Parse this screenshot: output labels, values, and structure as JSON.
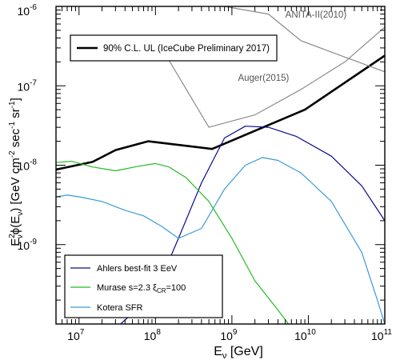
{
  "chart_data": {
    "type": "line",
    "title": "",
    "xlabel": {
      "main": "E",
      "sub": "ν",
      "rest": " [GeV]"
    },
    "ylabel": {
      "pre": "E",
      "sup": "2",
      "sub": "ν",
      "mid": "ϕ(E",
      "sub2": "ν",
      "post": ") [GeV cm",
      "sup2": "-2",
      "post2": " sec",
      "sup3": "-1",
      "post3": " sr",
      "sup4": "-1",
      "end": "]"
    },
    "xscale": "log",
    "yscale": "log",
    "xlim": [
      5000000.0,
      100000000000.0
    ],
    "ylim": [
      1e-10,
      1e-06
    ],
    "x_ticks": [
      {
        "value": 10000000.0,
        "base": "10",
        "exp": "7"
      },
      {
        "value": 100000000.0,
        "base": "10",
        "exp": "8"
      },
      {
        "value": 1000000000.0,
        "base": "10",
        "exp": "9"
      },
      {
        "value": 10000000000.0,
        "base": "10",
        "exp": "10"
      },
      {
        "value": 100000000000.0,
        "base": "10",
        "exp": "11"
      }
    ],
    "y_ticks": [
      {
        "value": 1e-09,
        "base": "10",
        "exp": "-9"
      },
      {
        "value": 1e-08,
        "base": "10",
        "exp": "-8"
      },
      {
        "value": 1e-07,
        "base": "10",
        "exp": "-7"
      },
      {
        "value": 1e-06,
        "base": "10",
        "exp": "-6"
      }
    ],
    "grid": false,
    "series": [
      {
        "id": "icecube-ul",
        "name": "90% C.L. UL (IceCube Preliminary 2017)",
        "color": "#000000",
        "width": 2.6,
        "x": [
          5000000.0,
          15000000.0,
          30000000.0,
          80000000.0,
          550000000.0,
          9000000000.0,
          100000000000.0
        ],
        "y": [
          8.8e-09,
          1.1e-08,
          1.55e-08,
          2e-08,
          1.6e-08,
          5e-08,
          2.4e-07
        ]
      },
      {
        "id": "anita",
        "name": "ANITA-II(2010)",
        "color": "#8c8c8c",
        "width": 1.2,
        "x": [
          800000000.0,
          3000000000.0,
          8000000000.0,
          30000000000.0,
          100000000000.0
        ],
        "y": [
          1e-06,
          8e-07,
          3.7e-07,
          2.3e-07,
          1.5e-07
        ]
      },
      {
        "id": "auger",
        "name": "Auger(2015)",
        "color": "#8c8c8c",
        "width": 1.2,
        "x": [
          150000000.0,
          500000000.0,
          2000000000.0,
          8000000000.0,
          30000000000.0,
          100000000000.0
        ],
        "y": [
          2.1e-07,
          3e-08,
          4.3e-08,
          9e-08,
          2e-07,
          5.5e-07
        ]
      },
      {
        "id": "ahlers",
        "name": "Ahlers best-fit 3 EeV",
        "color": "#0a0a8c",
        "width": 1.2,
        "x": [
          35000000.0,
          100000000.0,
          200000000.0,
          400000000.0,
          800000000.0,
          1500000000.0,
          3000000000.0,
          7000000000.0,
          20000000000.0,
          50000000000.0,
          100000000000.0
        ],
        "y": [
          1e-10,
          2.5e-10,
          1.2e-09,
          6e-09,
          2.2e-08,
          3.1e-08,
          3e-08,
          2.3e-08,
          1.3e-08,
          5.5e-09,
          2e-09
        ]
      },
      {
        "id": "murase",
        "name": "Murase s=2.3 ξ_CR=100",
        "color": "#22bb22",
        "width": 1.2,
        "x": [
          5000000.0,
          8000000.0,
          15000000.0,
          30000000.0,
          60000000.0,
          100000000.0,
          150000000.0,
          250000000.0,
          500000000.0,
          1000000000.0,
          2000000000.0,
          4000000000.0,
          5500000000.0
        ],
        "y": [
          1.08e-08,
          1.12e-08,
          9.5e-09,
          8.5e-09,
          9.7e-09,
          1.05e-08,
          9.5e-09,
          7e-09,
          3.5e-09,
          1.2e-09,
          3.5e-10,
          1.5e-10,
          1e-10
        ]
      },
      {
        "id": "kotera",
        "name": "Kotera SFR",
        "color": "#3a9ad9",
        "width": 1.2,
        "x": [
          5000000.0,
          7000000.0,
          10000000.0,
          20000000.0,
          40000000.0,
          70000000.0,
          120000000.0,
          200000000.0,
          400000000.0,
          800000000.0,
          1500000000.0,
          2500000000.0,
          4000000000.0,
          8000000000.0,
          20000000000.0,
          50000000000.0,
          80000000000.0,
          100000000000.0
        ],
        "y": [
          4e-09,
          4.2e-09,
          4e-09,
          3.5e-09,
          2.7e-09,
          2.3e-09,
          1.7e-09,
          1.2e-09,
          1.6e-09,
          5e-09,
          1e-08,
          1.25e-08,
          1.15e-08,
          8e-09,
          3.5e-09,
          8e-10,
          2e-10,
          1e-10
        ]
      }
    ],
    "annotations": [
      {
        "id": "anita-label",
        "text": "ANITA-II(2010)",
        "x": 5000000000.0,
        "y": 7.2e-07
      },
      {
        "id": "auger-label",
        "text": "Auger(2015)",
        "x": 1200000000.0,
        "y": 1.15e-07
      }
    ],
    "legend_top": {
      "placement": "top-left",
      "entries": [
        {
          "series": "icecube-ul",
          "label": "90% C.L. UL (IceCube Preliminary 2017)"
        }
      ]
    },
    "legend_bottom": {
      "placement": "bottom-left",
      "entries": [
        {
          "series": "ahlers",
          "label": "Ahlers best-fit 3 EeV"
        },
        {
          "series": "murase",
          "label_main": "Murase s=2.3 ξ",
          "label_sub": "CR",
          "label_end": "=100"
        },
        {
          "series": "kotera",
          "label": "Kotera SFR"
        }
      ]
    }
  }
}
